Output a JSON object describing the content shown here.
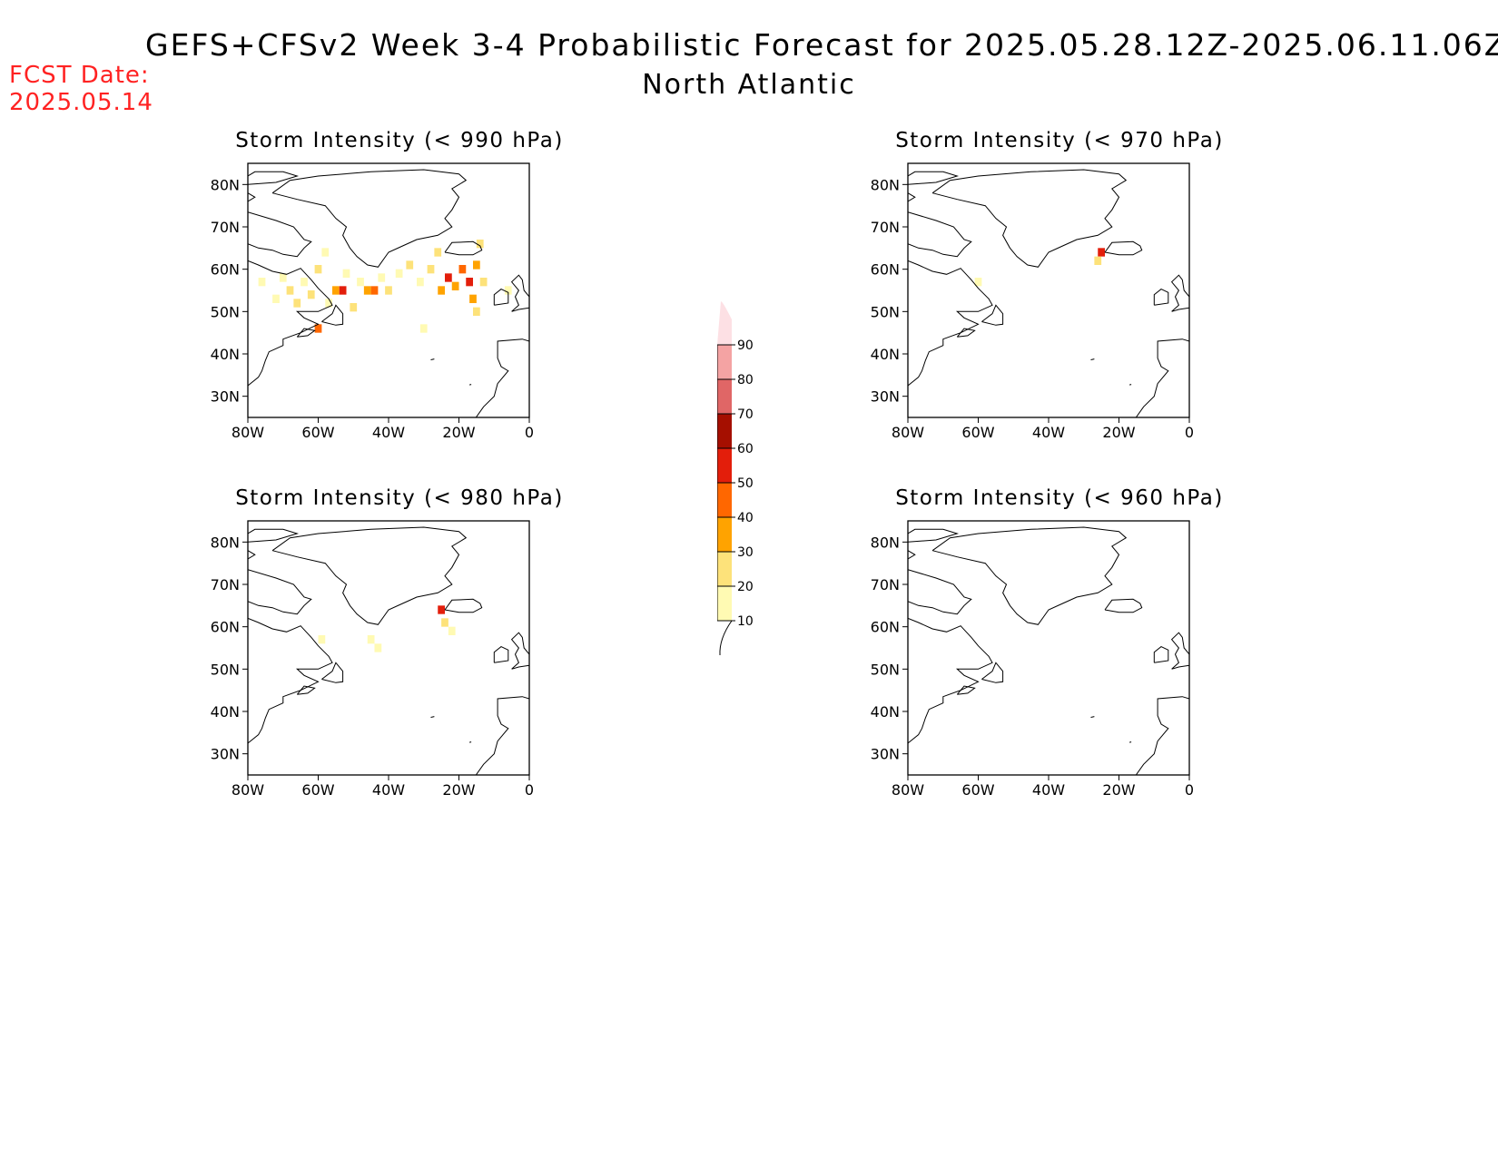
{
  "header": {
    "title": "GEFS+CFSv2 Week 3-4 Probabilistic Forecast for 2025.05.28.12Z-2025.06.11.06Z",
    "subtitle": "North Atlantic",
    "fcst_label": "FCST Date:",
    "fcst_date": "2025.05.14"
  },
  "axes": {
    "x_ticks": [
      "80W",
      "60W",
      "40W",
      "20W",
      "0"
    ],
    "x_values": [
      -80,
      -60,
      -40,
      -20,
      0
    ],
    "y_ticks": [
      "80N",
      "70N",
      "60N",
      "50N",
      "40N",
      "30N"
    ],
    "y_values": [
      80,
      70,
      60,
      50,
      40,
      30
    ],
    "lon_range": [
      -80,
      0
    ],
    "lat_range": [
      25,
      85
    ]
  },
  "colorbar": {
    "labels": [
      "10",
      "20",
      "30",
      "40",
      "50",
      "60",
      "70",
      "80",
      "90"
    ],
    "colors": [
      "#fffab3",
      "#fde27a",
      "#ffa300",
      "#ff6700",
      "#e31e0b",
      "#a50f00",
      "#e06666",
      "#f4a3a3",
      "#fde0e4"
    ]
  },
  "panels": [
    {
      "title": "Storm Intensity (< 990 hPa)",
      "cells": [
        {
          "lon": -72,
          "lat": 53,
          "v": 10
        },
        {
          "lon": -70,
          "lat": 58,
          "v": 10
        },
        {
          "lon": -68,
          "lat": 55,
          "v": 20
        },
        {
          "lon": -66,
          "lat": 52,
          "v": 20
        },
        {
          "lon": -64,
          "lat": 57,
          "v": 10
        },
        {
          "lon": -62,
          "lat": 54,
          "v": 20
        },
        {
          "lon": -60,
          "lat": 60,
          "v": 20
        },
        {
          "lon": -58,
          "lat": 64,
          "v": 10
        },
        {
          "lon": -57,
          "lat": 52,
          "v": 10
        },
        {
          "lon": -55,
          "lat": 55,
          "v": 30
        },
        {
          "lon": -53,
          "lat": 55,
          "v": 50
        },
        {
          "lon": -52,
          "lat": 59,
          "v": 10
        },
        {
          "lon": -50,
          "lat": 51,
          "v": 20
        },
        {
          "lon": -48,
          "lat": 57,
          "v": 10
        },
        {
          "lon": -46,
          "lat": 55,
          "v": 30
        },
        {
          "lon": -44,
          "lat": 55,
          "v": 40
        },
        {
          "lon": -42,
          "lat": 58,
          "v": 10
        },
        {
          "lon": -40,
          "lat": 55,
          "v": 20
        },
        {
          "lon": -37,
          "lat": 59,
          "v": 10
        },
        {
          "lon": -34,
          "lat": 61,
          "v": 20
        },
        {
          "lon": -31,
          "lat": 57,
          "v": 10
        },
        {
          "lon": -28,
          "lat": 60,
          "v": 20
        },
        {
          "lon": -26,
          "lat": 64,
          "v": 20
        },
        {
          "lon": -25,
          "lat": 55,
          "v": 30
        },
        {
          "lon": -23,
          "lat": 58,
          "v": 50
        },
        {
          "lon": -21,
          "lat": 56,
          "v": 30
        },
        {
          "lon": -19,
          "lat": 60,
          "v": 40
        },
        {
          "lon": -17,
          "lat": 57,
          "v": 50
        },
        {
          "lon": -16,
          "lat": 53,
          "v": 30
        },
        {
          "lon": -15,
          "lat": 61,
          "v": 30
        },
        {
          "lon": -14,
          "lat": 66,
          "v": 20
        },
        {
          "lon": -13,
          "lat": 57,
          "v": 20
        },
        {
          "lon": -60,
          "lat": 46,
          "v": 40
        },
        {
          "lon": -76,
          "lat": 57,
          "v": 10
        },
        {
          "lon": -30,
          "lat": 46,
          "v": 10
        },
        {
          "lon": -15,
          "lat": 50,
          "v": 20
        },
        {
          "lon": -6,
          "lat": 55,
          "v": 10
        }
      ]
    },
    {
      "title": "Storm Intensity (< 970 hPa)",
      "cells": [
        {
          "lon": -25,
          "lat": 64,
          "v": 50
        },
        {
          "lon": -26,
          "lat": 62,
          "v": 20
        },
        {
          "lon": -60,
          "lat": 57,
          "v": 10
        }
      ]
    },
    {
      "title": "Storm Intensity (< 980 hPa)",
      "cells": [
        {
          "lon": -25,
          "lat": 64,
          "v": 50
        },
        {
          "lon": -24,
          "lat": 61,
          "v": 20
        },
        {
          "lon": -59,
          "lat": 57,
          "v": 10
        },
        {
          "lon": -45,
          "lat": 57,
          "v": 10
        },
        {
          "lon": -43,
          "lat": 55,
          "v": 10
        },
        {
          "lon": -22,
          "lat": 59,
          "v": 10
        }
      ]
    },
    {
      "title": "Storm Intensity (< 960 hPa)",
      "cells": []
    }
  ]
}
